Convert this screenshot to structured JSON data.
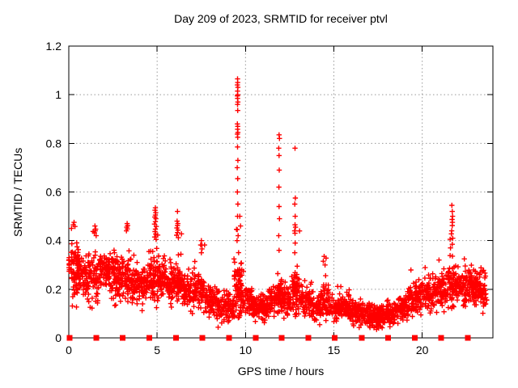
{
  "title": "Day 209 of 2023, SRMTID for receiver ptvl",
  "colors": {
    "marker": "#ff0000",
    "grid": "#999999",
    "axis": "#000000",
    "background": "#ffffff",
    "text": "#000000"
  },
  "chart_data": {
    "type": "scatter",
    "title": "Day 209 of 2023, SRMTID for receiver ptvl",
    "xlabel": "GPS time / hours",
    "ylabel": "SRMTID / TECUs",
    "xlim": [
      0,
      24
    ],
    "ylim": [
      0,
      1.2
    ],
    "xticks": [
      0,
      5,
      10,
      15,
      20
    ],
    "xtick_labels": [
      "0",
      "5",
      "10",
      "15",
      "20"
    ],
    "yticks": [
      0,
      0.2,
      0.4,
      0.6,
      0.8,
      1,
      1.2
    ],
    "ytick_labels": [
      "0",
      "0.2",
      "0.4",
      "0.6",
      "0.8",
      "1",
      "1.2"
    ],
    "grid": true,
    "legend": "none",
    "marker": {
      "shape": "plus",
      "color": "#ff0000",
      "size": 7
    },
    "seed": 20230209,
    "points_per_hour": 112,
    "baseline_segments": [
      [
        0.0,
        0.6,
        0.3,
        0.28,
        0.07,
        0.1,
        0.48,
        1.3
      ],
      [
        0.6,
        1.1,
        0.26,
        0.24,
        0.05,
        0.12,
        0.4,
        1.0
      ],
      [
        1.1,
        1.7,
        0.26,
        0.23,
        0.08,
        0.08,
        0.46,
        1.0
      ],
      [
        1.7,
        2.3,
        0.28,
        0.28,
        0.05,
        0.15,
        0.4,
        1.2
      ],
      [
        2.3,
        3.1,
        0.27,
        0.25,
        0.07,
        0.12,
        0.45,
        1.2
      ],
      [
        3.1,
        3.6,
        0.25,
        0.23,
        0.06,
        0.12,
        0.46,
        1.1
      ],
      [
        3.6,
        4.5,
        0.22,
        0.23,
        0.05,
        0.1,
        0.36,
        1.0
      ],
      [
        4.5,
        5.1,
        0.26,
        0.25,
        0.07,
        0.12,
        0.5,
        1.2
      ],
      [
        5.1,
        5.7,
        0.26,
        0.24,
        0.05,
        0.13,
        0.36,
        1.0
      ],
      [
        5.7,
        6.4,
        0.24,
        0.22,
        0.06,
        0.12,
        0.45,
        1.2
      ],
      [
        6.4,
        7.1,
        0.2,
        0.19,
        0.05,
        0.1,
        0.33,
        1.0
      ],
      [
        7.1,
        7.7,
        0.21,
        0.19,
        0.06,
        0.09,
        0.4,
        1.0
      ],
      [
        7.7,
        8.4,
        0.16,
        0.14,
        0.04,
        0.06,
        0.26,
        1.0
      ],
      [
        8.4,
        9.35,
        0.13,
        0.12,
        0.04,
        0.04,
        0.24,
        1.0
      ],
      [
        9.35,
        9.8,
        0.22,
        0.18,
        0.09,
        0.08,
        0.45,
        1.5
      ],
      [
        9.8,
        10.4,
        0.16,
        0.14,
        0.04,
        0.07,
        0.28,
        1.0
      ],
      [
        10.4,
        11.3,
        0.13,
        0.13,
        0.035,
        0.05,
        0.24,
        1.2
      ],
      [
        11.3,
        11.75,
        0.15,
        0.16,
        0.04,
        0.08,
        0.3,
        1.0
      ],
      [
        11.75,
        12.15,
        0.18,
        0.16,
        0.06,
        0.08,
        0.4,
        1.3
      ],
      [
        12.15,
        12.6,
        0.15,
        0.15,
        0.04,
        0.07,
        0.28,
        1.0
      ],
      [
        12.6,
        13.1,
        0.2,
        0.18,
        0.07,
        0.08,
        0.45,
        1.2
      ],
      [
        13.1,
        13.7,
        0.16,
        0.14,
        0.045,
        0.06,
        0.28,
        1.0
      ],
      [
        13.7,
        14.25,
        0.13,
        0.13,
        0.035,
        0.05,
        0.24,
        1.0
      ],
      [
        14.25,
        14.8,
        0.16,
        0.15,
        0.05,
        0.06,
        0.33,
        1.0
      ],
      [
        14.8,
        15.4,
        0.13,
        0.12,
        0.035,
        0.05,
        0.22,
        1.0
      ],
      [
        15.4,
        16.0,
        0.14,
        0.12,
        0.04,
        0.05,
        0.24,
        1.0
      ],
      [
        16.0,
        16.9,
        0.11,
        0.1,
        0.03,
        0.03,
        0.2,
        1.0
      ],
      [
        16.9,
        17.9,
        0.09,
        0.09,
        0.03,
        0.03,
        0.17,
        1.3
      ],
      [
        17.9,
        18.5,
        0.11,
        0.1,
        0.03,
        0.04,
        0.2,
        1.0
      ],
      [
        18.5,
        19.2,
        0.11,
        0.13,
        0.035,
        0.05,
        0.22,
        1.0
      ],
      [
        19.2,
        20.0,
        0.15,
        0.17,
        0.04,
        0.08,
        0.28,
        1.0
      ],
      [
        20.0,
        20.7,
        0.18,
        0.18,
        0.045,
        0.1,
        0.31,
        1.0
      ],
      [
        20.7,
        21.4,
        0.19,
        0.2,
        0.05,
        0.1,
        0.33,
        1.0
      ],
      [
        21.4,
        21.95,
        0.24,
        0.22,
        0.07,
        0.12,
        0.45,
        1.2
      ],
      [
        21.95,
        22.6,
        0.2,
        0.2,
        0.05,
        0.1,
        0.33,
        1.0
      ],
      [
        22.6,
        23.3,
        0.21,
        0.21,
        0.05,
        0.1,
        0.33,
        1.4
      ],
      [
        23.3,
        23.65,
        0.2,
        0.18,
        0.05,
        0.1,
        0.3,
        1.0
      ]
    ],
    "spike_points": [
      [
        9.55,
        1.065
      ],
      [
        9.56,
        1.05
      ],
      [
        9.54,
        1.04
      ],
      [
        9.57,
        1.03
      ],
      [
        9.55,
        1.015
      ],
      [
        9.56,
        1.0
      ],
      [
        9.54,
        0.995
      ],
      [
        9.55,
        0.985
      ],
      [
        9.57,
        0.97
      ],
      [
        9.55,
        0.96
      ],
      [
        9.56,
        0.935
      ],
      [
        9.54,
        0.88
      ],
      [
        9.56,
        0.87
      ],
      [
        9.55,
        0.858
      ],
      [
        9.57,
        0.845
      ],
      [
        9.54,
        0.838
      ],
      [
        9.56,
        0.825
      ],
      [
        9.55,
        0.785
      ],
      [
        9.57,
        0.73
      ],
      [
        9.53,
        0.7
      ],
      [
        9.56,
        0.655
      ],
      [
        9.54,
        0.6
      ],
      [
        9.57,
        0.55
      ],
      [
        9.55,
        0.5
      ],
      [
        9.53,
        0.445
      ],
      [
        9.58,
        0.42
      ],
      [
        9.52,
        0.4
      ],
      [
        9.68,
        0.5
      ],
      [
        9.72,
        0.46
      ],
      [
        11.9,
        0.835
      ],
      [
        11.92,
        0.82
      ],
      [
        11.88,
        0.78
      ],
      [
        11.9,
        0.75
      ],
      [
        11.91,
        0.69
      ],
      [
        11.89,
        0.62
      ],
      [
        11.9,
        0.54
      ],
      [
        11.92,
        0.49
      ],
      [
        11.88,
        0.42
      ],
      [
        11.9,
        0.36
      ],
      [
        12.8,
        0.78
      ],
      [
        12.82,
        0.575
      ],
      [
        12.79,
        0.55
      ],
      [
        12.81,
        0.5
      ],
      [
        12.8,
        0.465
      ],
      [
        12.83,
        0.455
      ],
      [
        12.78,
        0.44
      ],
      [
        12.8,
        0.43
      ],
      [
        12.81,
        0.39
      ],
      [
        12.79,
        0.35
      ],
      [
        4.9,
        0.535
      ],
      [
        4.88,
        0.525
      ],
      [
        4.92,
        0.515
      ],
      [
        4.9,
        0.505
      ],
      [
        4.87,
        0.497
      ],
      [
        4.93,
        0.49
      ],
      [
        4.9,
        0.478
      ],
      [
        4.85,
        0.468
      ],
      [
        4.95,
        0.458
      ],
      [
        4.9,
        0.447
      ],
      [
        4.88,
        0.437
      ],
      [
        4.92,
        0.427
      ],
      [
        4.86,
        0.415
      ],
      [
        4.94,
        0.405
      ],
      [
        6.15,
        0.52
      ],
      [
        6.13,
        0.48
      ],
      [
        6.17,
        0.47
      ],
      [
        6.15,
        0.462
      ],
      [
        6.12,
        0.452
      ],
      [
        6.18,
        0.443
      ],
      [
        6.15,
        0.433
      ],
      [
        6.1,
        0.422
      ],
      [
        6.2,
        0.412
      ],
      [
        21.68,
        0.545
      ],
      [
        21.7,
        0.52
      ],
      [
        21.72,
        0.5
      ],
      [
        21.69,
        0.487
      ],
      [
        21.71,
        0.475
      ],
      [
        21.7,
        0.462
      ],
      [
        21.67,
        0.44
      ],
      [
        21.73,
        0.41
      ],
      [
        21.7,
        0.385
      ],
      [
        21.6,
        0.37
      ],
      [
        20.95,
        0.32
      ],
      [
        3.3,
        0.47
      ],
      [
        3.33,
        0.462
      ],
      [
        3.28,
        0.455
      ],
      [
        3.31,
        0.448
      ],
      [
        3.26,
        0.44
      ],
      [
        1.48,
        0.46
      ],
      [
        1.52,
        0.447
      ],
      [
        1.5,
        0.44
      ],
      [
        1.45,
        0.432
      ],
      [
        1.55,
        0.42
      ],
      [
        7.5,
        0.4
      ],
      [
        7.46,
        0.382
      ],
      [
        7.54,
        0.366
      ],
      [
        7.5,
        0.35
      ],
      [
        14.45,
        0.335
      ],
      [
        14.4,
        0.315
      ],
      [
        14.5,
        0.3
      ],
      [
        0.3,
        0.475
      ],
      [
        0.25,
        0.465
      ],
      [
        0.35,
        0.458
      ],
      [
        0.15,
        0.45
      ]
    ],
    "bottom_markers": {
      "y": 0,
      "shape": "filled-square",
      "color": "#ff0000",
      "size": 7,
      "x": [
        0.05,
        1.55,
        3.05,
        4.56,
        6.06,
        7.56,
        9.07,
        10.57,
        12.05,
        13.55,
        15.05,
        16.57,
        18.08,
        19.58,
        21.08,
        22.58
      ]
    }
  }
}
